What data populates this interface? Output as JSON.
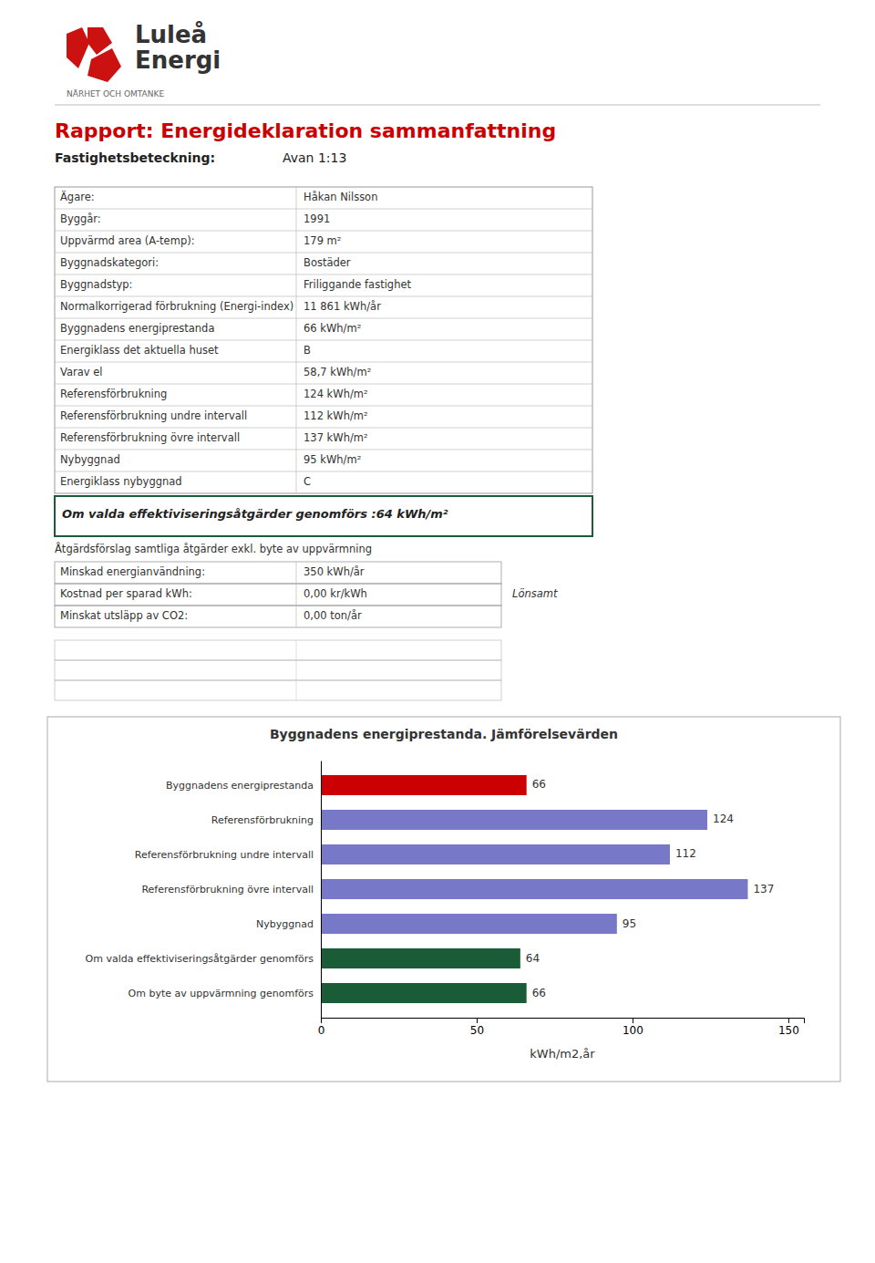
{
  "page": {
    "logo_text1": "Luleå",
    "logo_text2": "Energi",
    "logo_subtext": "NÄRHET OCH OMTANKE",
    "logo_color": "#cc1111",
    "title": "Rapport: Energideklaration sammanfattning",
    "title_color": "#cc0000",
    "subtitle_label": "Fastighetsbeteckning:",
    "subtitle_value": "Avan 1:13",
    "table1": [
      {
        "label": "Ägare:",
        "value": "Håkan Nilsson"
      },
      {
        "label": "Byggår:",
        "value": "1991"
      },
      {
        "label": "Uppvärmd area (A-temp):",
        "value": "179 m²"
      },
      {
        "label": "Byggnadskategori:",
        "value": "Bostäder"
      },
      {
        "label": "Byggnadstyp:",
        "value": "Friliggande fastighet"
      },
      {
        "label": "Normalkorrigerad förbrukning (Energi-index)",
        "value": "11 861 kWh/år"
      },
      {
        "label": "Byggnadens energiprestanda",
        "value": "66 kWh/m²"
      },
      {
        "label": "Energiklass det aktuella huset",
        "value": "B"
      },
      {
        "label": "Varav el",
        "value": "58,7 kWh/m²"
      },
      {
        "label": "Referensförbrukning",
        "value": "124 kWh/m²"
      },
      {
        "label": "Referensförbrukning undre intervall",
        "value": "112 kWh/m²"
      },
      {
        "label": "Referensförbrukning övre intervall",
        "value": "137 kWh/m²"
      },
      {
        "label": "Nybyggnad",
        "value": "95 kWh/m²"
      },
      {
        "label": "Energiklass nybyggnad",
        "value": "C"
      }
    ],
    "highlighted_row": "Om valda effektiviseringsåtgärder genomförs :64 kWh/m²",
    "section_label": "Åtgärdsförslag samtliga åtgärder exkl. byte av uppvärmning",
    "table2": [
      {
        "label": "Minskad energianvändning:",
        "value": "350 kWh/år"
      },
      {
        "label": "Kostnad per sparad kWh:",
        "value": "0,00 kr/kWh",
        "note": "Lönsamt"
      },
      {
        "label": "Minskat utsläpp av CO2:",
        "value": "0,00 ton/år"
      }
    ]
  },
  "chart_data": {
    "type": "bar",
    "orientation": "horizontal",
    "title": "Byggnadens energiprestanda. Jämförelsevärden",
    "categories": [
      "Byggnadens energiprestanda",
      "Referensförbrukning",
      "Referensförbrukning undre intervall",
      "Referensförbrukning övre intervall",
      "Nybyggnad",
      "Om valda effektiviseringsåtgärder genomförs",
      "Om byte av uppvärmning genomförs"
    ],
    "values": [
      66,
      124,
      112,
      137,
      95,
      64,
      66
    ],
    "colors": [
      "#cc0000",
      "#7878c8",
      "#7878c8",
      "#7878c8",
      "#7878c8",
      "#1a5c38",
      "#1a5c38"
    ],
    "x_label": "kWh/m2,år",
    "xlim": [
      0,
      155
    ],
    "xticks": [
      0,
      50,
      100,
      150
    ],
    "data_labels": true,
    "grid": false
  }
}
